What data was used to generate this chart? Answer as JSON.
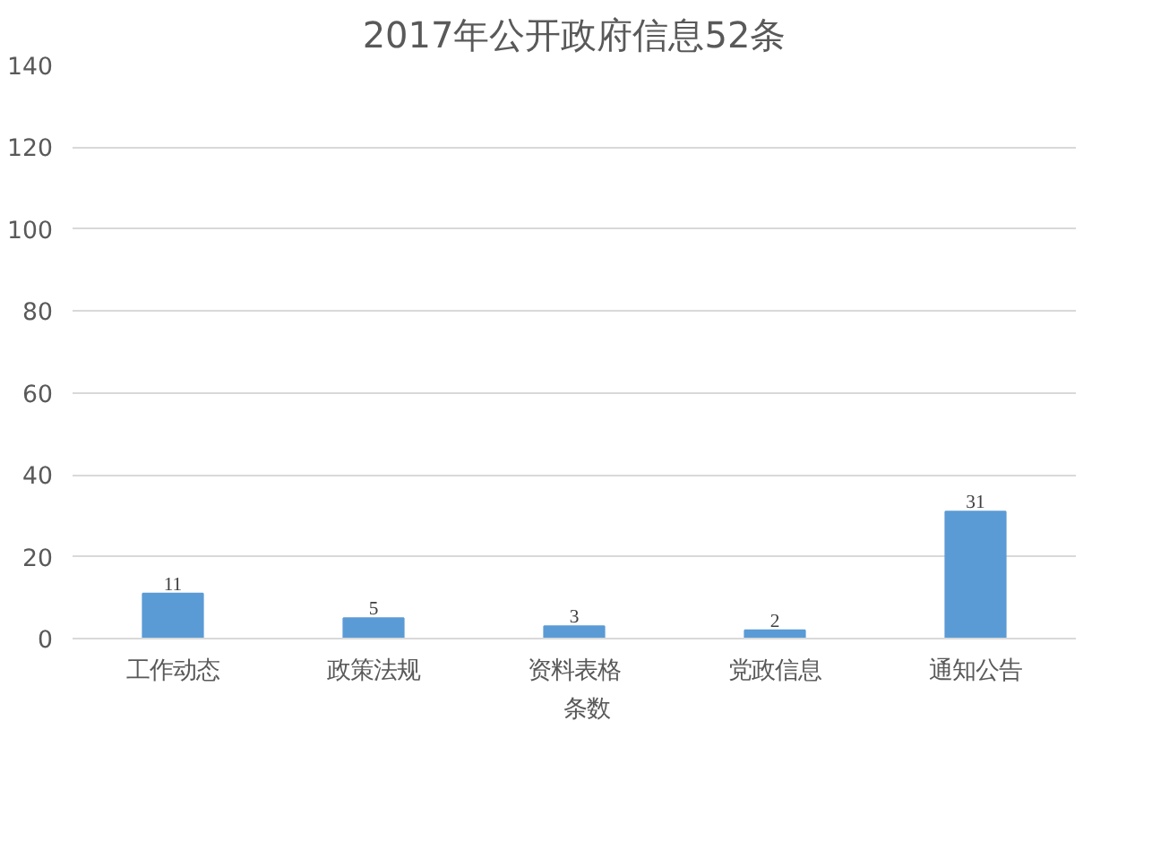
{
  "chart_data": {
    "type": "bar",
    "title": "2017年公开政府信息52条",
    "categories": [
      "工作动态",
      "政策法规",
      "资料表格",
      "党政信息",
      "通知公告"
    ],
    "series": [
      {
        "name": "条数",
        "color": "#5b9bd5",
        "values": [
          11,
          5,
          3,
          2,
          31
        ]
      }
    ],
    "ylim": [
      0,
      140
    ],
    "yticks": [
      0,
      20,
      40,
      60,
      80,
      100,
      120,
      140
    ],
    "grid": "y",
    "legend": "bottom",
    "data_labels": true
  }
}
